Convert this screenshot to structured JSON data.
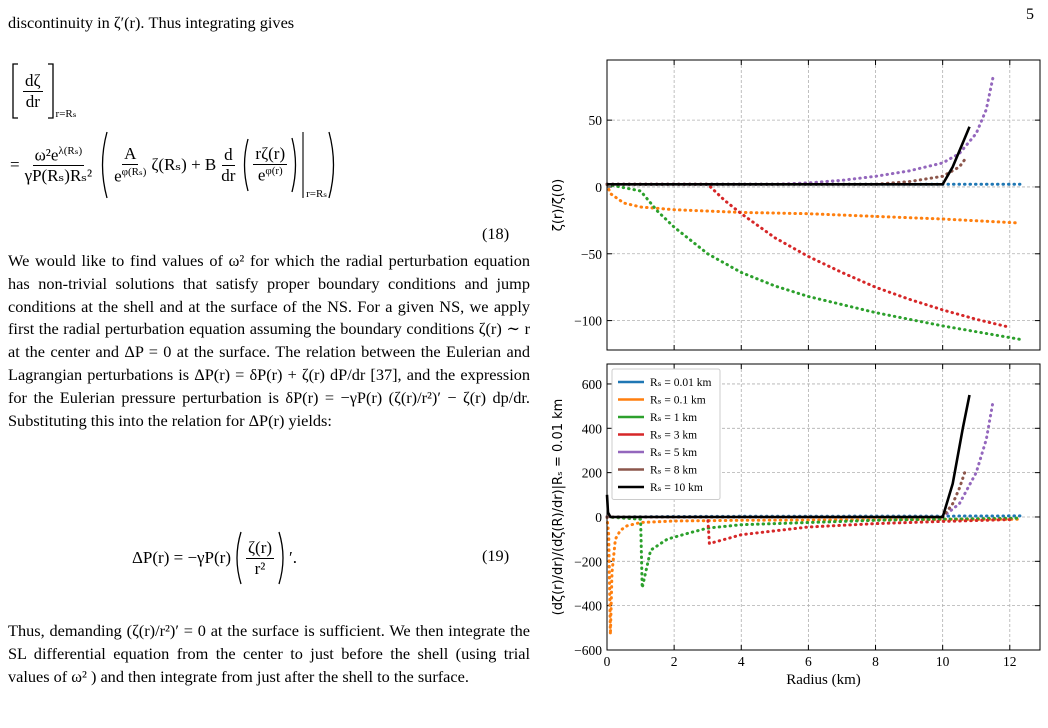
{
  "page_number": "5",
  "text": {
    "intro": "discontinuity in ζ′(r). Thus integrating gives",
    "eq18": {
      "lhs_num": "dζ",
      "lhs_den": "dr",
      "lhs_sub": "r=Rₛ",
      "eq": "=",
      "c_num_base": "ω²e",
      "c_num_exp": "λ(Rₛ)",
      "c_den": "γP(Rₛ)Rₛ²",
      "a_num": "A",
      "a_den_base": "e",
      "a_den_exp": "φ(Rₛ)",
      "mid": "ζ(Rₛ) + B",
      "d_num": "d",
      "d_den": "dr",
      "r_num": "rζ(r)",
      "r_den_base": "e",
      "r_den_exp": "φ(r)",
      "eval_sub": "r=Rₛ",
      "number": "(18)"
    },
    "para1": "We would like to find values of ω² for which the radial perturbation equation has non-trivial solutions that satisfy proper boundary conditions and jump conditions at the shell and at the surface of the NS. For a given NS, we apply first the radial perturbation equation assuming the boundary conditions ζ(r) ∼ r at the center and ΔP = 0 at the surface. The relation between the Eulerian and Lagrangian perturbations is ΔP(r) = δP(r) + ζ(r) dP/dr [37], and the expression for the Eulerian pressure perturbation is δP(r) = −γP(r) (ζ(r)/r²)′ − ζ(r) dp/dr. Substituting this into the relation for ΔP(r) yields:",
    "eq19": {
      "lhs": "ΔP(r) = −γP(r)",
      "num": "ζ(r)",
      "den": "r²",
      "prime": "′.",
      "number": "(19)"
    },
    "para2": "Thus, demanding (ζ(r)/r²)′ = 0 at the surface is sufficient. We then integrate the SL differential equation from the center to just before the shell (using trial values of ω² ) and then integrate from just after the shell to the surface."
  },
  "chart_data": [
    {
      "type": "line",
      "ylabel": "ζ(r)/ζ(0)",
      "xlim": [
        0,
        12.9
      ],
      "ylim": [
        -122,
        95
      ],
      "xticks": [
        0,
        2,
        4,
        6,
        8,
        10,
        12
      ],
      "yticks": [
        {
          "value": -100,
          "label": "−100"
        },
        {
          "value": -50,
          "label": "−50"
        },
        0,
        50
      ],
      "grid": true,
      "series": [
        {
          "name": "Rₛ = 0.01 km",
          "color": "#1f77b4",
          "linestyle": "dotted",
          "x": [
            0,
            2,
            4,
            6,
            8,
            10,
            12.3
          ],
          "values": [
            2,
            2,
            2,
            2,
            2,
            2,
            2
          ]
        },
        {
          "name": "Rₛ = 0.1 km",
          "color": "#ff7f0e",
          "linestyle": "dotted",
          "x": [
            0,
            0.1,
            0.5,
            1,
            2,
            4,
            6,
            8,
            10,
            12.3
          ],
          "values": [
            2,
            -5,
            -12,
            -15,
            -17,
            -19,
            -20,
            -22,
            -24,
            -27
          ]
        },
        {
          "name": "Rₛ = 1 km",
          "color": "#2ca02c",
          "linestyle": "dotted",
          "x": [
            0,
            1,
            1.5,
            2,
            3,
            4,
            5,
            6,
            8,
            10,
            12.3
          ],
          "values": [
            2,
            -3,
            -18,
            -30,
            -50,
            -64,
            -74,
            -82,
            -94,
            -104,
            -114
          ]
        },
        {
          "name": "Rₛ = 3 km",
          "color": "#d62728",
          "linestyle": "dotted",
          "x": [
            0,
            3,
            3.5,
            4,
            5,
            6,
            7,
            8,
            9,
            10,
            11,
            12
          ],
          "values": [
            2,
            2,
            -10,
            -20,
            -38,
            -52,
            -64,
            -75,
            -84,
            -92,
            -99,
            -105
          ]
        },
        {
          "name": "Rₛ = 5 km",
          "color": "#9467bd",
          "linestyle": "dotted",
          "x": [
            0,
            5,
            6,
            7,
            8,
            9,
            10,
            10.5,
            11,
            11.3,
            11.5
          ],
          "values": [
            2,
            2,
            3,
            5,
            8,
            12,
            18,
            25,
            40,
            58,
            82
          ]
        },
        {
          "name": "Rₛ = 8 km",
          "color": "#8c564b",
          "linestyle": "dotted",
          "x": [
            0,
            8,
            9,
            10,
            10.5,
            10.7
          ],
          "values": [
            2,
            2,
            4,
            8,
            15,
            22
          ]
        },
        {
          "name": "Rₛ = 10 km",
          "color": "#000000",
          "linestyle": "solid",
          "x": [
            0,
            10,
            10.3,
            10.6,
            10.8
          ],
          "values": [
            2,
            2,
            15,
            33,
            45
          ]
        }
      ]
    },
    {
      "type": "line",
      "xlabel": "Radius (km)",
      "ylabel": "(dζ(r)/dr)/(dζ(R)/dr)|Rₛ = 0.01 km",
      "xlim": [
        0,
        12.9
      ],
      "ylim": [
        -600,
        690
      ],
      "xticks": [
        0,
        2,
        4,
        6,
        8,
        10,
        12
      ],
      "yticks": [
        {
          "value": -600,
          "label": "−600"
        },
        {
          "value": -400,
          "label": "−400"
        },
        {
          "value": -200,
          "label": "−200"
        },
        0,
        200,
        400,
        600
      ],
      "grid": true,
      "legend": "upper left",
      "series": [
        {
          "name": "Rₛ = 0.01 km",
          "color": "#1f77b4",
          "linestyle": "dotted",
          "x": [
            0,
            2,
            4,
            6,
            8,
            10,
            12.3
          ],
          "values": [
            0,
            2,
            3,
            3,
            4,
            4,
            5
          ]
        },
        {
          "name": "Rₛ = 0.1 km",
          "color": "#ff7f0e",
          "linestyle": "dotted",
          "x": [
            0,
            0.05,
            0.1,
            0.15,
            0.25,
            0.4,
            0.6,
            1,
            2,
            4,
            8,
            12.3
          ],
          "values": [
            0,
            -80,
            -530,
            -250,
            -100,
            -60,
            -40,
            -25,
            -18,
            -15,
            -12,
            -10
          ]
        },
        {
          "name": "Rₛ = 1 km",
          "color": "#2ca02c",
          "linestyle": "dotted",
          "x": [
            0,
            1,
            1.05,
            1.3,
            1.8,
            2.5,
            3,
            4,
            6,
            8,
            10,
            12.3
          ],
          "values": [
            0,
            -10,
            -320,
            -150,
            -100,
            -70,
            -50,
            -35,
            -25,
            -15,
            -10,
            -5
          ]
        },
        {
          "name": "Rₛ = 3 km",
          "color": "#d62728",
          "linestyle": "dotted",
          "x": [
            0,
            3,
            3.05,
            4,
            6,
            8,
            10,
            12
          ],
          "values": [
            0,
            0,
            -120,
            -80,
            -45,
            -30,
            -20,
            -12
          ]
        },
        {
          "name": "Rₛ = 5 km",
          "color": "#9467bd",
          "linestyle": "dotted",
          "x": [
            0,
            10,
            10.5,
            11,
            11.3,
            11.5
          ],
          "values": [
            0,
            0,
            60,
            200,
            350,
            520
          ]
        },
        {
          "name": "Rₛ = 8 km",
          "color": "#8c564b",
          "linestyle": "dotted",
          "x": [
            0,
            10,
            10.3,
            10.5,
            10.7
          ],
          "values": [
            0,
            0,
            60,
            130,
            220
          ]
        },
        {
          "name": "Rₛ = 10 km",
          "color": "#000000",
          "linestyle": "solid",
          "x": [
            0,
            0.03,
            0.1,
            10,
            10.3,
            10.6,
            10.8
          ],
          "values": [
            100,
            20,
            0,
            0,
            150,
            400,
            550
          ]
        }
      ]
    }
  ]
}
